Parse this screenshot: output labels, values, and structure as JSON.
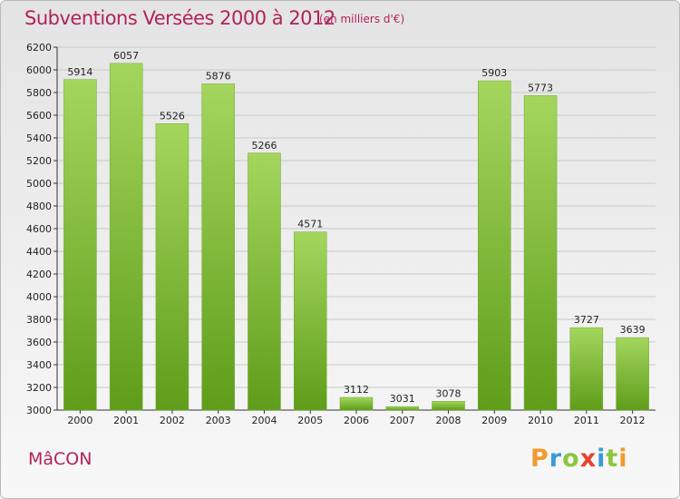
{
  "header": {
    "title": "Subventions Versées 2000 à 2012",
    "subtitle": "(en milliers d'€)"
  },
  "footer": {
    "city": "MâCON",
    "brand_letters": [
      {
        "ch": "P",
        "color": "#f29a2e"
      },
      {
        "ch": "r",
        "color": "#3a9ad9"
      },
      {
        "ch": "o",
        "color": "#8cc63f"
      },
      {
        "ch": "x",
        "color": "#e8412c"
      },
      {
        "ch": "i",
        "color": "#3a9ad9"
      },
      {
        "ch": "t",
        "color": "#8cc63f"
      },
      {
        "ch": "i",
        "color": "#f29a2e"
      }
    ]
  },
  "colors": {
    "title": "#b0235a",
    "bar_top": "#a4d65e",
    "bar_bottom": "#5f9d1a",
    "grid": "#c8c8c8"
  },
  "chart_data": {
    "type": "bar",
    "title": "Subventions Versées 2000 à 2012",
    "categories": [
      "2000",
      "2001",
      "2002",
      "2003",
      "2004",
      "2005",
      "2006",
      "2007",
      "2008",
      "2009",
      "2010",
      "2011",
      "2012"
    ],
    "values": [
      5914,
      6057,
      5526,
      5876,
      5266,
      4571,
      3112,
      3031,
      3078,
      5903,
      5773,
      3727,
      3639
    ],
    "ylim": [
      3000,
      6200
    ],
    "yticks": [
      3000,
      3200,
      3400,
      3600,
      3800,
      4000,
      4200,
      4400,
      4600,
      4800,
      5000,
      5200,
      5400,
      5600,
      5800,
      6000,
      6200
    ],
    "grid": true,
    "xlabel": "",
    "ylabel": ""
  }
}
